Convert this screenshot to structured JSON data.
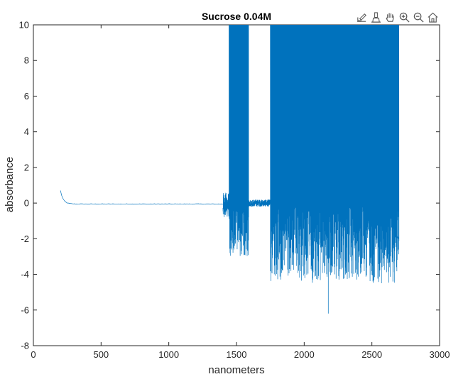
{
  "toolbar": {
    "tools": [
      {
        "name": "axes-edit-icon"
      },
      {
        "name": "brush-icon"
      },
      {
        "name": "pan-hand-icon"
      },
      {
        "name": "zoom-in-icon"
      },
      {
        "name": "zoom-out-icon"
      },
      {
        "name": "home-icon"
      }
    ]
  },
  "chart_data": {
    "type": "line",
    "title": "Sucrose 0.04M",
    "xlabel": "nanometers",
    "ylabel": "absorbance",
    "xlim": [
      0,
      3000
    ],
    "ylim": [
      -8,
      10
    ],
    "xticks": [
      0,
      500,
      1000,
      1500,
      2000,
      2500,
      3000
    ],
    "yticks": [
      -8,
      -6,
      -4,
      -2,
      0,
      2,
      4,
      6,
      8,
      10
    ],
    "grid": false,
    "legend": "none",
    "series": [
      {
        "color": "#0072bd",
        "segments": [
          {
            "x_range": [
              200,
              1400
            ],
            "shape": "decay",
            "values": {
              "start": 0.7,
              "end": -0.05
            }
          },
          {
            "x_range": [
              1400,
              1445
            ],
            "shape": "noise",
            "values": {
              "low": -0.8,
              "high": 0.6
            }
          },
          {
            "x_range": [
              1445,
              1590
            ],
            "shape": "saturated-noise",
            "values": {
              "low": -3.0,
              "high": 10
            }
          },
          {
            "x_range": [
              1590,
              1750
            ],
            "shape": "noise",
            "values": {
              "low": -0.2,
              "high": 0.2
            }
          },
          {
            "x_range": [
              1750,
              2700
            ],
            "shape": "saturated-noise",
            "values": {
              "low": -4.5,
              "high": 10,
              "min": -6.2
            }
          }
        ]
      }
    ]
  }
}
